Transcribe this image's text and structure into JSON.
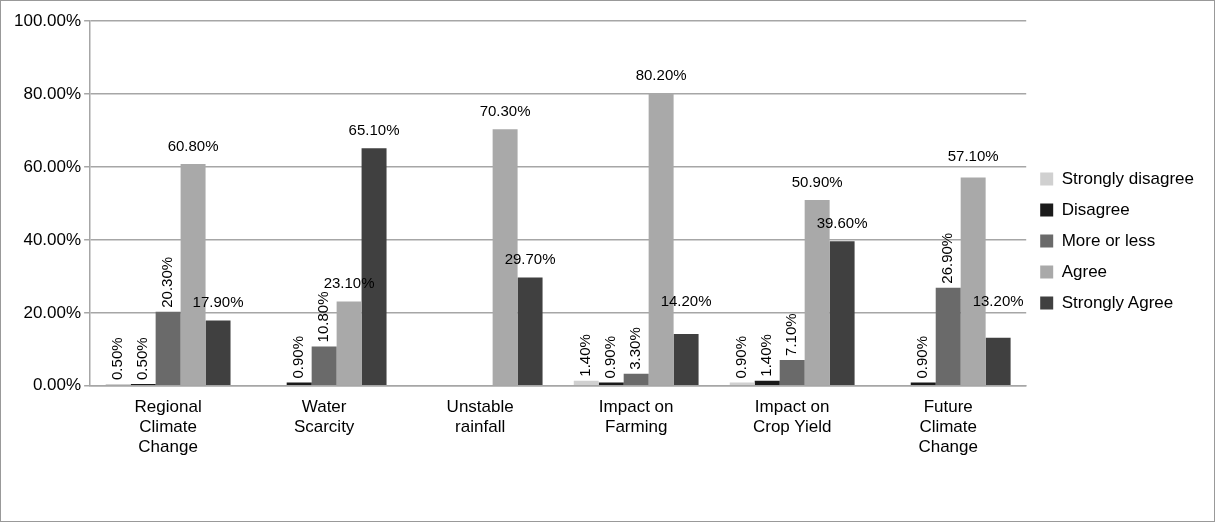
{
  "chart_data": {
    "type": "bar",
    "categories": [
      "Regional Climate Change",
      "Water Scarcity",
      "Unstable rainfall",
      "Impact on Farming",
      "Impact on Crop Yield",
      "Future Climate Change"
    ],
    "series": [
      {
        "name": "Strongly disagree",
        "color": "#d0d0d0",
        "values": [
          0.5,
          null,
          null,
          1.4,
          0.9,
          null
        ],
        "value_labels": [
          "0.50%",
          null,
          null,
          "1.40%",
          "0.90%",
          null
        ]
      },
      {
        "name": "Disagree",
        "color": "#1a1a1a",
        "values": [
          0.5,
          0.9,
          null,
          0.9,
          1.4,
          0.9
        ],
        "value_labels": [
          "0.50%",
          "0.90%",
          null,
          "0.90%",
          "1.40%",
          "0.90%"
        ]
      },
      {
        "name": "More or less",
        "color": "#6a6a6a",
        "values": [
          20.3,
          10.8,
          null,
          3.3,
          7.1,
          26.9
        ],
        "value_labels": [
          "20.30%",
          "10.80%",
          null,
          "3.30%",
          "7.10%",
          "26.90%"
        ]
      },
      {
        "name": "Agree",
        "color": "#a9a9a9",
        "values": [
          60.8,
          23.1,
          70.3,
          80.2,
          50.9,
          57.1
        ],
        "value_labels": [
          "60.80%",
          "23.10%",
          "70.30%",
          "80.20%",
          "50.90%",
          "57.10%"
        ]
      },
      {
        "name": "Strongly Agree",
        "color": "#404040",
        "values": [
          17.9,
          65.1,
          29.7,
          14.2,
          39.6,
          13.2
        ],
        "value_labels": [
          "17.90%",
          "65.10%",
          "29.70%",
          "14.20%",
          "39.60%",
          "13.20%"
        ]
      }
    ],
    "ylim": [
      0,
      100
    ],
    "yticks": [
      {
        "value": 0,
        "label": "0.00%"
      },
      {
        "value": 20,
        "label": "20.00%"
      },
      {
        "value": 40,
        "label": "40.00%"
      },
      {
        "value": 60,
        "label": "60.00%"
      },
      {
        "value": 80,
        "label": "80.00%"
      },
      {
        "value": 100,
        "label": "100.00%"
      }
    ],
    "grid": "y",
    "legend": "right"
  }
}
